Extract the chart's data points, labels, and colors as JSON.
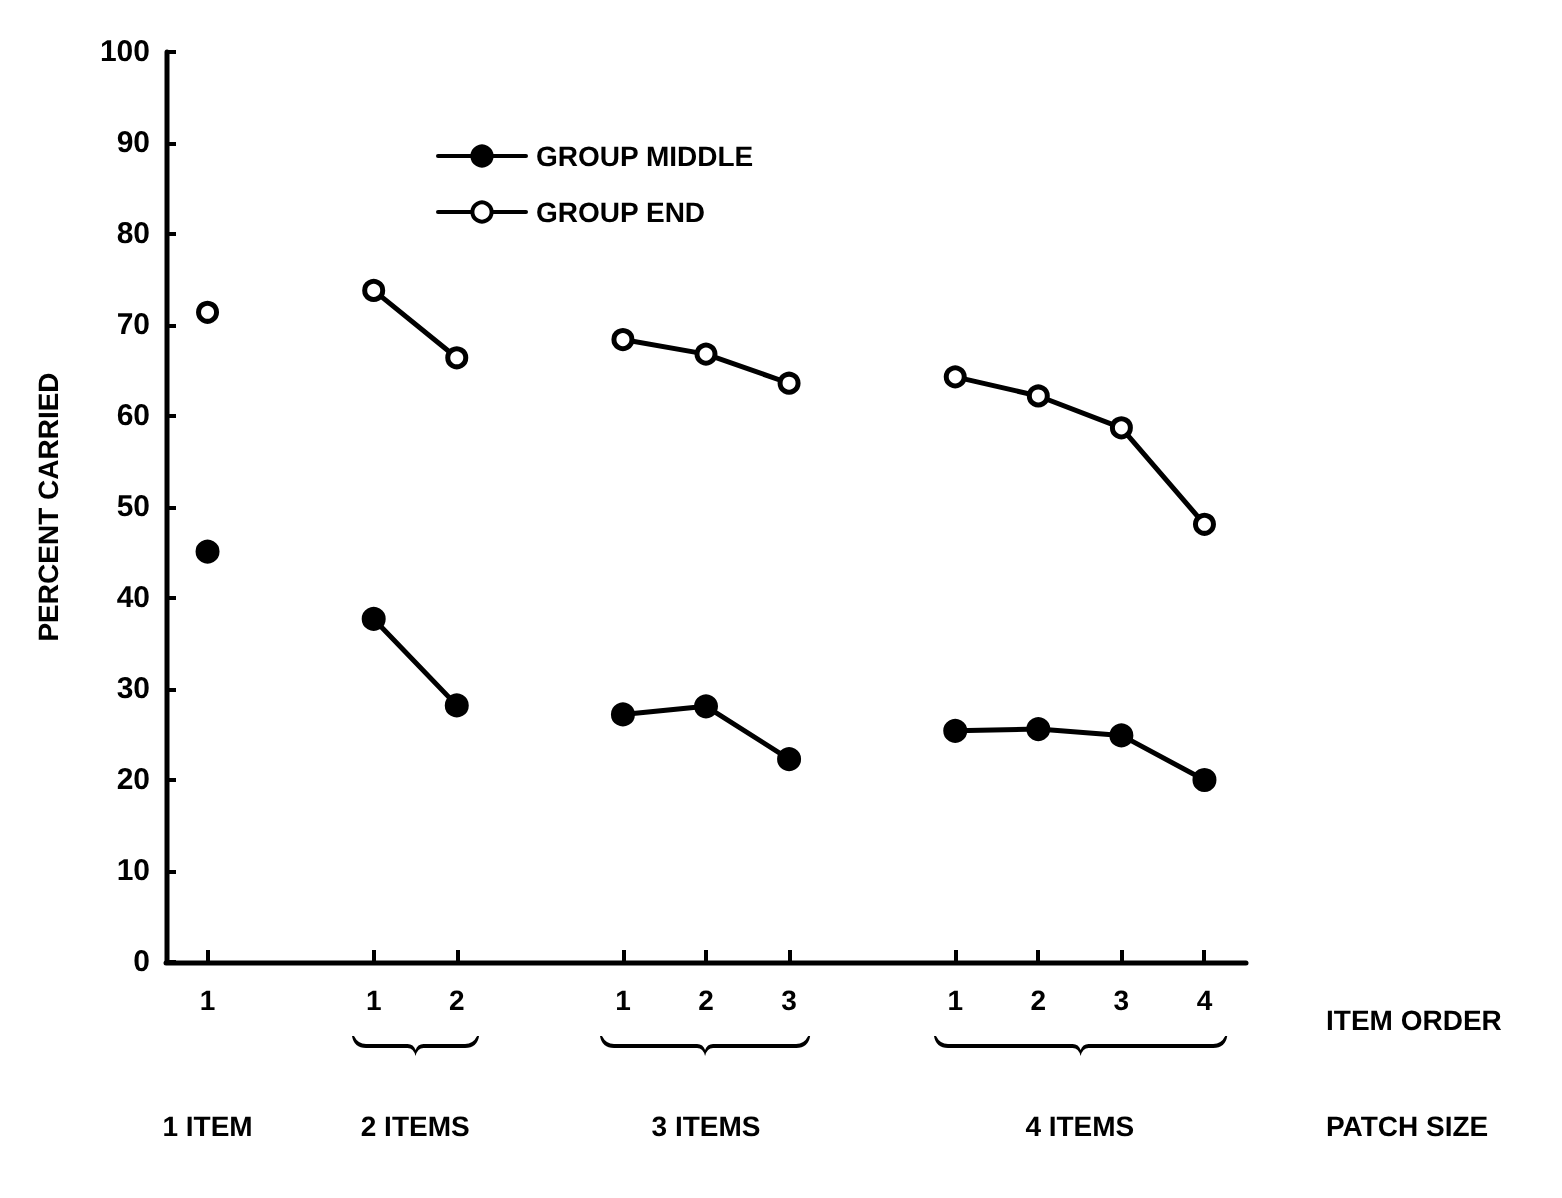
{
  "chart_data": {
    "type": "line",
    "xlabel": "ITEM ORDER",
    "ylabel": "PERCENT CARRIED",
    "categories": [
      "1",
      null,
      "1",
      "2",
      null,
      "1",
      "2",
      "3",
      null,
      "1",
      "2",
      "3",
      "4"
    ],
    "series": [
      {
        "name": "GROUP MIDDLE",
        "color": "#000000",
        "values": [
          45.1,
          null,
          37.7,
          28.2,
          null,
          27.2,
          28.1,
          22.3,
          null,
          25.4,
          25.6,
          24.9,
          20.0
        ]
      },
      {
        "name": "GROUP END",
        "color": "#000000",
        "values": [
          71.4,
          null,
          73.8,
          66.4,
          null,
          68.4,
          66.8,
          63.6,
          null,
          64.3,
          62.2,
          58.7,
          48.1
        ]
      }
    ],
    "annotations": [
      "1 ITEM",
      "2 ITEMS",
      "3 ITEMS",
      "4 ITEMS",
      "PATCH SIZE"
    ],
    "ylim": [
      0,
      100
    ],
    "yticks": [
      0,
      10,
      20,
      30,
      40,
      50,
      60,
      70,
      80,
      90,
      100
    ],
    "grid": false,
    "legend": "top left",
    "marker": "circle",
    "line_style": "solid"
  }
}
